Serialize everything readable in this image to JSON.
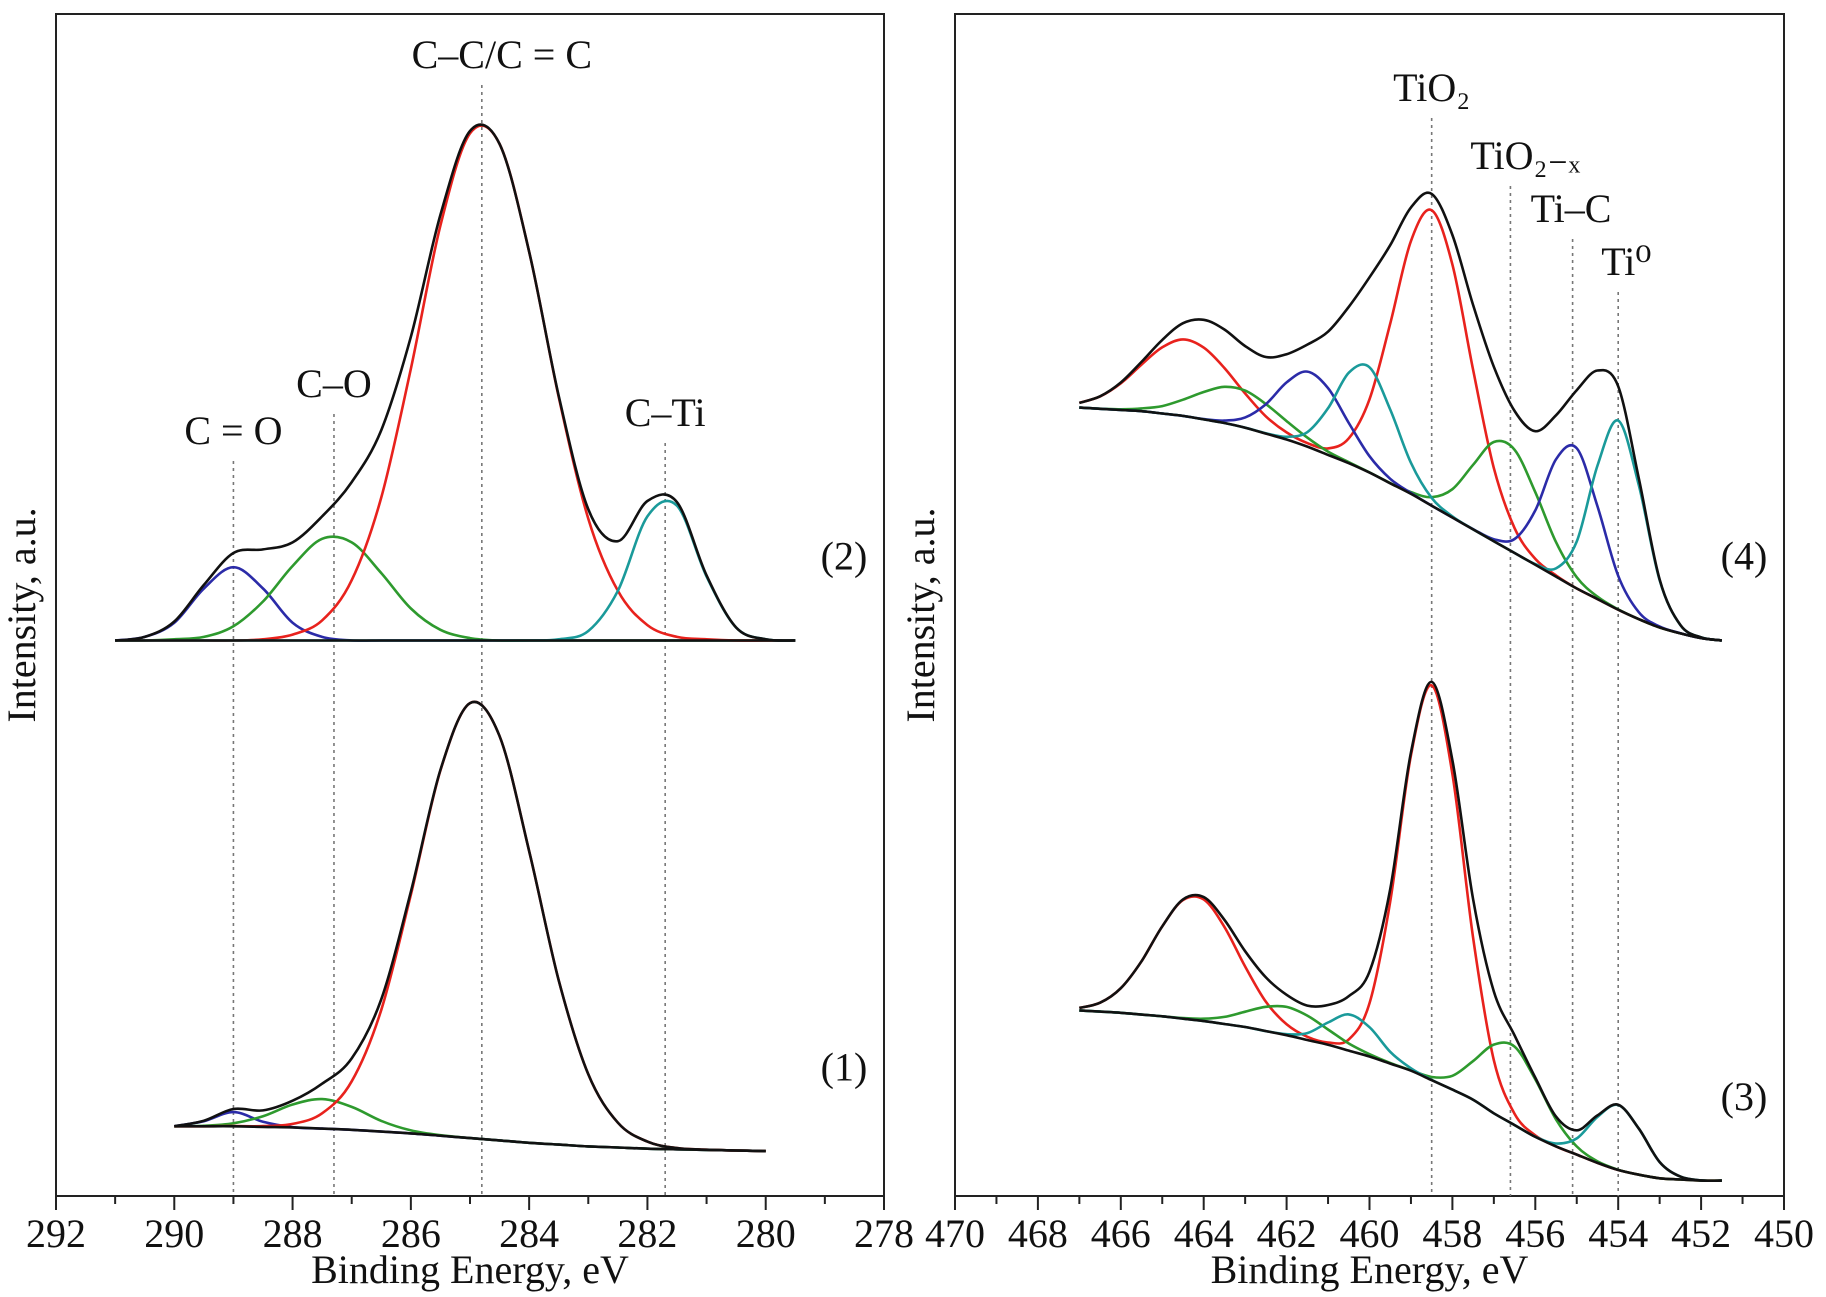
{
  "chart_data": [
    {
      "type": "line",
      "xlabel": "Binding Energy, eV",
      "ylabel": "Intensity, a.u.",
      "xlim": [
        292,
        278
      ],
      "ylim": [
        0,
        100
      ],
      "xticks": [
        292,
        290,
        288,
        286,
        284,
        282,
        280,
        278
      ],
      "xminor": [
        291,
        289,
        287,
        285,
        283,
        281,
        279
      ],
      "annotations": [
        {
          "text": "C = O",
          "x": 289
        },
        {
          "text": "C–O",
          "x": 287.3
        },
        {
          "text": "C–C/C = C",
          "x": 284.8
        },
        {
          "text": "C–Ti",
          "x": 281.7
        }
      ],
      "spectra": [
        {
          "label": "(2)",
          "x": [
            291,
            290.5,
            290,
            289.5,
            289,
            288.5,
            288,
            287.5,
            287,
            286.5,
            286,
            285.5,
            285,
            284.5,
            284,
            283.5,
            283,
            282.5,
            282,
            281.5,
            281,
            280.5,
            280,
            279.5
          ],
          "series": [
            {
              "color": "#2b2ba8",
              "values": [
                47,
                47.3,
                48.5,
                51.4,
                53.2,
                51.4,
                48.5,
                47.3,
                47,
                47,
                47,
                47,
                47,
                47,
                47,
                47,
                47,
                47,
                47,
                47,
                47,
                47,
                47,
                47
              ]
            },
            {
              "color": "#2e9a2e",
              "values": [
                47,
                47,
                47.1,
                47.3,
                48.2,
                50.3,
                53.3,
                55.6,
                55.3,
                52.7,
                49.7,
                47.9,
                47.2,
                47,
                47,
                47,
                47,
                47,
                47,
                47,
                47,
                47,
                47,
                47
              ]
            },
            {
              "color": "#e8221d",
              "values": [
                47,
                47,
                47,
                47,
                47,
                47.1,
                47.5,
                48.7,
                52.1,
                59.1,
                70,
                82.1,
                89.9,
                89,
                79.9,
                67.6,
                57.3,
                51.2,
                48.3,
                47.3,
                47.1,
                47,
                47,
                47
              ]
            },
            {
              "color": "#1a9a9a",
              "values": [
                47,
                47,
                47,
                47,
                47,
                47,
                47,
                47,
                47,
                47,
                47,
                47,
                47,
                47,
                47,
                47.1,
                47.8,
                51.2,
                57.5,
                58.4,
                52.4,
                48.1,
                47.1,
                47
              ]
            },
            {
              "color": "#111111",
              "values": [
                47,
                47,
                47,
                47,
                47,
                47,
                47,
                47,
                47,
                47,
                47,
                47,
                47,
                47,
                47,
                47,
                47,
                47,
                47,
                47,
                47,
                47,
                47,
                47
              ]
            },
            {
              "color": "#111111",
              "values": [
                47,
                47.3,
                48.6,
                51.7,
                54.4,
                54.7,
                55.3,
                57.5,
                60.4,
                64.8,
                72.7,
                83,
                90.1,
                89,
                79.9,
                67.7,
                58.1,
                55.4,
                58.8,
                58.7,
                52.5,
                48.1,
                47.1,
                47
              ]
            }
          ]
        },
        {
          "label": "(1)",
          "x": [
            290,
            289.5,
            289,
            288.5,
            288,
            287.5,
            287,
            286.5,
            286,
            285.5,
            285,
            284.5,
            284,
            283.5,
            283,
            282.5,
            282,
            281.5,
            281,
            280.5,
            280
          ],
          "series": [
            {
              "color": "#2b2ba8",
              "values": [
                5.9,
                6.33,
                7.1,
                6.28,
                5.82,
                5.7,
                5.6,
                5.45,
                5.3,
                5.1,
                4.9,
                4.7,
                4.5,
                4.35,
                4.2,
                4.1,
                4,
                3.95,
                3.9,
                3.85,
                3.8
              ]
            },
            {
              "color": "#2e9a2e",
              "values": [
                5.9,
                5.94,
                6.15,
                6.75,
                7.74,
                8.2,
                7.54,
                6.35,
                5.55,
                5.14,
                4.9,
                4.7,
                4.5,
                4.35,
                4.2,
                4.1,
                4,
                3.95,
                3.9,
                3.85,
                3.8
              ]
            },
            {
              "color": "#e8221d",
              "values": [
                5.9,
                5.9,
                5.91,
                5.91,
                6.1,
                7,
                9.7,
                15.75,
                25.5,
                36,
                41.7,
                38.9,
                29.2,
                18.25,
                10.3,
                6.2,
                4.6,
                4.05,
                3.92,
                3.85,
                3.8
              ]
            },
            {
              "color": "#111111",
              "values": [
                5.9,
                5.9,
                5.9,
                5.85,
                5.8,
                5.7,
                5.6,
                5.45,
                5.3,
                5.1,
                4.9,
                4.7,
                4.5,
                4.35,
                4.2,
                4.1,
                4,
                3.95,
                3.9,
                3.85,
                3.8
              ]
            },
            {
              "color": "#111111",
              "values": [
                5.9,
                6.37,
                7.36,
                7.24,
                8.06,
                9.5,
                11.64,
                16.65,
                25.75,
                36.04,
                41.7,
                38.9,
                29.2,
                18.25,
                10.3,
                6.2,
                4.6,
                4.05,
                3.92,
                3.85,
                3.8
              ]
            }
          ]
        }
      ]
    },
    {
      "type": "line",
      "xlabel": "Binding Energy, eV",
      "ylabel": "Intensity, a.u.",
      "xlim": [
        470,
        450
      ],
      "ylim": [
        0,
        100
      ],
      "xticks": [
        470,
        468,
        466,
        464,
        462,
        460,
        458,
        456,
        454,
        452,
        450
      ],
      "xminor": [
        469,
        467,
        465,
        463,
        461,
        459,
        457,
        455,
        453,
        451
      ],
      "annotations": [
        {
          "text": "TiO₂",
          "x": 458.5
        },
        {
          "text": "TiO₂₋ₓ",
          "x": 456.6
        },
        {
          "text": "Ti–C",
          "x": 455.1
        },
        {
          "text": "Ti⁰",
          "x": 454
        }
      ],
      "spectra": [
        {
          "label": "(4)",
          "x": [
            467,
            466.5,
            466,
            465.5,
            465,
            464.5,
            464,
            463.5,
            463,
            462.5,
            462,
            461.5,
            461,
            460.5,
            460,
            459.5,
            459,
            458.5,
            458,
            457.5,
            457,
            456.5,
            456,
            455.5,
            455,
            454.5,
            454,
            453.5,
            453,
            452.5,
            452,
            451.5
          ],
          "series": [
            {
              "color": "#e8221d",
              "values": [
                67.1,
                67.65,
                68.76,
                70.34,
                71.8,
                72.47,
                71.78,
                70.05,
                67.89,
                65.96,
                64.6,
                63.7,
                63.25,
                64.1,
                67.4,
                73.8,
                80.8,
                83.4,
                78.8,
                69.9,
                61.6,
                56.5,
                53.9,
                52.5,
                51.4,
                50.5,
                49.6,
                48.8,
                48.1,
                47.6,
                47.2,
                47
              ]
            },
            {
              "color": "#2e9a2e",
              "values": [
                66.7,
                66.61,
                66.56,
                66.63,
                66.83,
                67.37,
                68.02,
                68.46,
                68.14,
                67,
                65.56,
                64.16,
                62.98,
                62.08,
                61.22,
                60.32,
                59.55,
                59.12,
                59.8,
                61.86,
                63.79,
                63.13,
                59.54,
                55.32,
                52.34,
                50.7,
                49.63,
                48.8,
                48.1,
                47.6,
                47.2,
                47
              ]
            },
            {
              "color": "#2b2ba8",
              "values": [
                66.7,
                66.6,
                66.5,
                66.4,
                66.2,
                66,
                65.73,
                65.6,
                65.87,
                66.99,
                68.83,
                69.75,
                68.35,
                65.4,
                62.59,
                60.68,
                59.47,
                58.4,
                57.4,
                56.42,
                55.57,
                55.58,
                58,
                62.33,
                63.26,
                58.34,
                52.47,
                49.38,
                48.17,
                47.61,
                47.2,
                47
              ]
            },
            {
              "color": "#1a9a9a",
              "values": [
                66.7,
                66.6,
                66.5,
                66.4,
                66.2,
                66,
                65.7,
                65.4,
                65,
                64.53,
                64.23,
                64.62,
                66.64,
                69.65,
                70.11,
                66.54,
                62.02,
                59.06,
                57.5,
                56.4,
                55.4,
                54.4,
                53.46,
                53.1,
                55.38,
                61.8,
                65.6,
                60.1,
                52.08,
                48.3,
                47.26,
                47
              ]
            },
            {
              "color": "#111111",
              "values": [
                66.7,
                66.6,
                66.5,
                66.4,
                66.2,
                66,
                65.7,
                65.4,
                65,
                64.5,
                64,
                63.4,
                62.7,
                62,
                61.2,
                60.3,
                59.4,
                58.4,
                57.4,
                56.4,
                55.4,
                54.4,
                53.4,
                52.4,
                51.4,
                50.5,
                49.6,
                48.8,
                48.1,
                47.6,
                47.2,
                47
              ]
            },
            {
              "color": "#111111",
              "values": [
                67.1,
                67.66,
                68.82,
                70.57,
                72.43,
                73.84,
                74.13,
                73.31,
                71.9,
                70.98,
                71.22,
                72.03,
                73.12,
                75.23,
                77.72,
                80.44,
                83.64,
                84.78,
                81.3,
                75.38,
                70.16,
                66.41,
                64.7,
                66.05,
                68.18,
                69.84,
                68.5,
                60.68,
                52.15,
                48.31,
                47.26,
                47
              ]
            }
          ]
        },
        {
          "label": "(3)",
          "x": [
            467,
            466.5,
            466,
            465.5,
            465,
            464.5,
            464,
            463.5,
            463,
            462.5,
            462,
            461.5,
            461,
            460.5,
            460,
            459.5,
            459,
            458.5,
            458,
            457.5,
            457,
            456.5,
            456,
            455.5,
            455,
            454.5,
            454,
            453.5,
            453,
            452.5,
            452,
            451.5
          ],
          "series": [
            {
              "color": "#e8221d",
              "values": [
                15.91,
                16.35,
                17.58,
                19.86,
                22.82,
                25.04,
                25.09,
                22.77,
                19.41,
                16.43,
                14.53,
                13.47,
                12.99,
                13.25,
                16.3,
                24.9,
                37.3,
                43.2,
                35.7,
                21.85,
                11.5,
                6.95,
                5.13,
                4.2,
                3.5,
                2.8,
                2.2,
                1.8,
                1.5,
                1.4,
                1.3,
                1.3
              ]
            },
            {
              "color": "#2e9a2e",
              "values": [
                15.7,
                15.6,
                15.5,
                15.35,
                15.2,
                15.05,
                15,
                15.15,
                15.59,
                16.01,
                16,
                15.26,
                14.09,
                12.9,
                12,
                11.25,
                10.64,
                10.07,
                10.17,
                11.41,
                12.81,
                12.64,
                9.87,
                6.48,
                4.19,
                2.93,
                2.22,
                1.8,
                1.5,
                1.4,
                1.3,
                1.3
              ]
            },
            {
              "color": "#1a9a9a",
              "values": [
                15.7,
                15.6,
                15.5,
                15.35,
                15.2,
                15,
                14.8,
                14.55,
                14.3,
                13.95,
                13.69,
                13.78,
                14.68,
                15.36,
                14.28,
                12.2,
                10.8,
                9.82,
                9,
                8.15,
                7,
                6,
                5.02,
                4.44,
                4.87,
                6.69,
                7.7,
                5.69,
                2.87,
                1.64,
                1.32,
                1.3
              ]
            },
            {
              "color": "#111111",
              "values": [
                15.7,
                15.6,
                15.5,
                15.35,
                15.2,
                15,
                14.8,
                14.55,
                14.3,
                13.95,
                13.6,
                13.2,
                12.8,
                12.3,
                11.8,
                11.2,
                10.6,
                9.8,
                9,
                8.15,
                7,
                6,
                5,
                4.2,
                3.5,
                2.8,
                2.2,
                1.8,
                1.5,
                1.4,
                1.3,
                1.3
              ]
            },
            {
              "color": "#111111",
              "values": [
                15.91,
                16.35,
                17.58,
                19.86,
                22.82,
                25.09,
                25.29,
                23.37,
                20.7,
                18.49,
                17.02,
                16.11,
                16.16,
                16.91,
                18.98,
                25.95,
                37.54,
                43.49,
                36.87,
                25.11,
                17.31,
                13.59,
                10.02,
                6.72,
                5.56,
                6.82,
                7.72,
                5.69,
                2.87,
                1.64,
                1.32,
                1.3
              ]
            }
          ]
        }
      ]
    }
  ]
}
